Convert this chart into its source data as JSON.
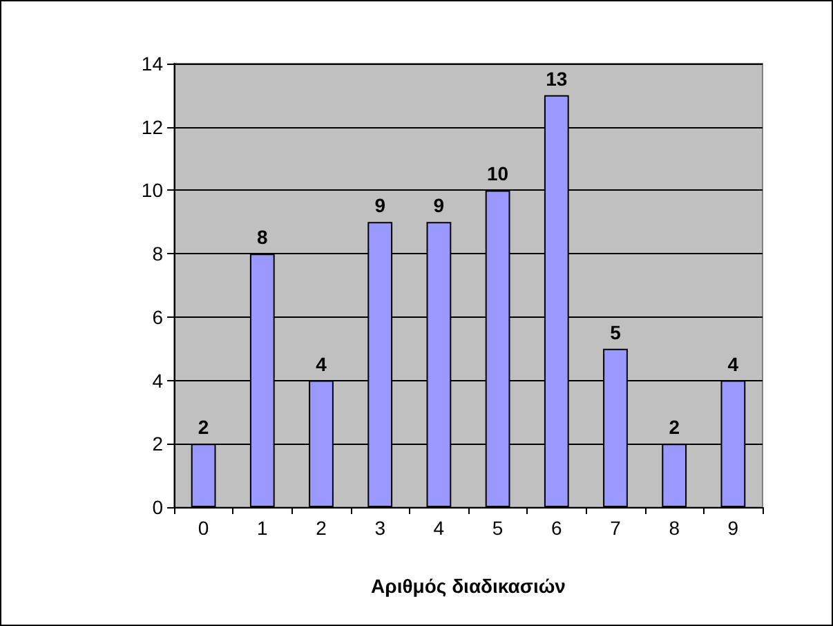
{
  "chart_data": {
    "type": "bar",
    "xlabel": "Αριθμός διαδικασιών",
    "categories": [
      "0",
      "1",
      "2",
      "3",
      "4",
      "5",
      "6",
      "7",
      "8",
      "9"
    ],
    "values": [
      2,
      8,
      4,
      9,
      9,
      10,
      13,
      5,
      2,
      4
    ],
    "color": "#9999ff",
    "ylim": [
      0,
      14
    ],
    "yticks": [
      0,
      2,
      4,
      6,
      8,
      10,
      12,
      14
    ],
    "grid": "y",
    "data_labels": true
  }
}
